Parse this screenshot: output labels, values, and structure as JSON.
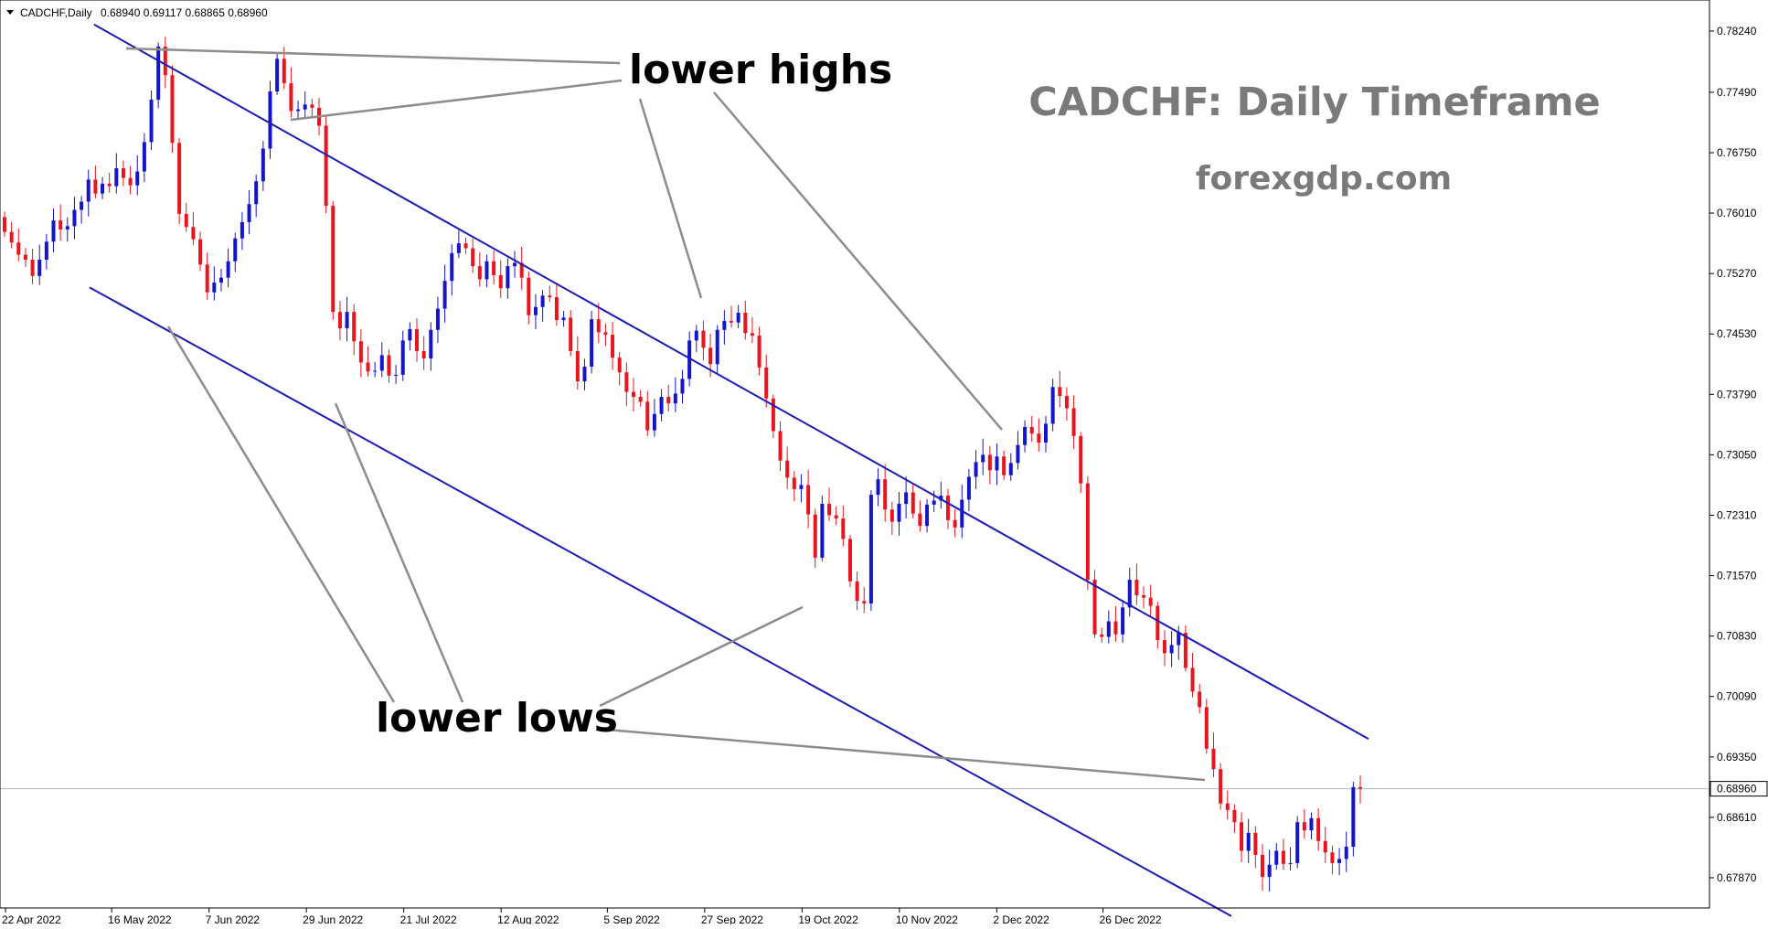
{
  "header": {
    "symbol": "CADCHF,Daily",
    "ohlc": "0.68940 0.69117 0.68865 0.68960"
  },
  "title": "CADCHF: Daily Timeframe",
  "subtitle": "forexgdp.com",
  "annotations": {
    "highs": "lower highs",
    "lows": "lower lows"
  },
  "current_price_label": "0.68960",
  "colors": {
    "bull": "#1414c8",
    "bear": "#e8141e",
    "channel": "#1a1ab4",
    "pointer": "#8c8c8c",
    "title": "#7a7a7a",
    "price_line": "#a8b4c0"
  },
  "chart_data": {
    "type": "candlestick",
    "symbol": "CADCHF",
    "timeframe": "Daily",
    "ylim": [
      0.675,
      0.7862
    ],
    "y_ticks": [
      "0.78240",
      "0.77490",
      "0.76750",
      "0.76010",
      "0.75270",
      "0.74530",
      "0.73790",
      "0.73050",
      "0.72310",
      "0.71570",
      "0.70830",
      "0.70090",
      "0.69350",
      "0.68610",
      "0.67870"
    ],
    "x_ticks": [
      "22 Apr 2022",
      "16 May 2022",
      "7 Jun 2022",
      "29 Jun 2022",
      "21 Jul 2022",
      "12 Aug 2022",
      "5 Sep 2022",
      "27 Sep 2022",
      "19 Oct 2022",
      "10 Nov 2022",
      "2 Dec 2022",
      "26 Dec 2022"
    ],
    "current_price": 0.6896,
    "channel": {
      "upper": {
        "from": {
          "date": "2022-05-12",
          "price": 0.7832
        },
        "to": {
          "date": "2023-02-24",
          "price": 0.6957
        }
      },
      "lower": {
        "from": {
          "date": "2022-05-11",
          "price": 0.751
        },
        "to": {
          "date": "2023-01-24",
          "price": 0.674
        }
      }
    },
    "closes": [
      0.7578,
      0.7565,
      0.755,
      0.7544,
      0.7524,
      0.7544,
      0.7566,
      0.7592,
      0.7581,
      0.7585,
      0.7605,
      0.7615,
      0.7642,
      0.7625,
      0.7637,
      0.7634,
      0.7656,
      0.7644,
      0.7635,
      0.7652,
      0.7688,
      0.774,
      0.7805,
      0.777,
      0.7687,
      0.76,
      0.7584,
      0.7569,
      0.7538,
      0.7504,
      0.7516,
      0.7522,
      0.7542,
      0.757,
      0.759,
      0.7612,
      0.764,
      0.768,
      0.775,
      0.779,
      0.776,
      0.7726,
      0.7728,
      0.7734,
      0.773,
      0.7708,
      0.761,
      0.748,
      0.746,
      0.748,
      0.7444,
      0.7418,
      0.7407,
      0.7408,
      0.7427,
      0.7402,
      0.7403,
      0.7445,
      0.7459,
      0.7432,
      0.7423,
      0.7458,
      0.7484,
      0.7518,
      0.7552,
      0.7564,
      0.7558,
      0.7536,
      0.752,
      0.7542,
      0.7525,
      0.7509,
      0.7536,
      0.754,
      0.7522,
      0.7476,
      0.7486,
      0.75,
      0.7498,
      0.747,
      0.7473,
      0.7432,
      0.7395,
      0.7413,
      0.7471,
      0.7455,
      0.7452,
      0.7424,
      0.7406,
      0.7382,
      0.7376,
      0.737,
      0.7335,
      0.7355,
      0.7376,
      0.7368,
      0.738,
      0.7398,
      0.7445,
      0.7457,
      0.7436,
      0.7416,
      0.7458,
      0.7469,
      0.7467,
      0.7479,
      0.7454,
      0.7451,
      0.7412,
      0.7374,
      0.7334,
      0.7298,
      0.7277,
      0.7263,
      0.7268,
      0.7232,
      0.7179,
      0.7245,
      0.7231,
      0.7227,
      0.7202,
      0.715,
      0.7126,
      0.7123,
      0.7256,
      0.7275,
      0.7238,
      0.7223,
      0.7245,
      0.7259,
      0.7233,
      0.7218,
      0.7244,
      0.7249,
      0.7255,
      0.7225,
      0.7216,
      0.725,
      0.7278,
      0.7296,
      0.7305,
      0.7286,
      0.7303,
      0.728,
      0.7295,
      0.7317,
      0.7339,
      0.7331,
      0.732,
      0.7343,
      0.7388,
      0.7377,
      0.7362,
      0.7328,
      0.727,
      0.7152,
      0.7085,
      0.7082,
      0.7101,
      0.7085,
      0.7118,
      0.7152,
      0.7133,
      0.713,
      0.712,
      0.7078,
      0.7062,
      0.7072,
      0.7087,
      0.7044,
      0.7015,
      0.6996,
      0.6945,
      0.692,
      0.6878,
      0.687,
      0.6855,
      0.682,
      0.6842,
      0.6815,
      0.6788,
      0.6803,
      0.682,
      0.6804,
      0.6805,
      0.6855,
      0.6845,
      0.686,
      0.6832,
      0.6818,
      0.6805,
      0.681,
      0.6825,
      0.6898,
      0.6896
    ]
  }
}
